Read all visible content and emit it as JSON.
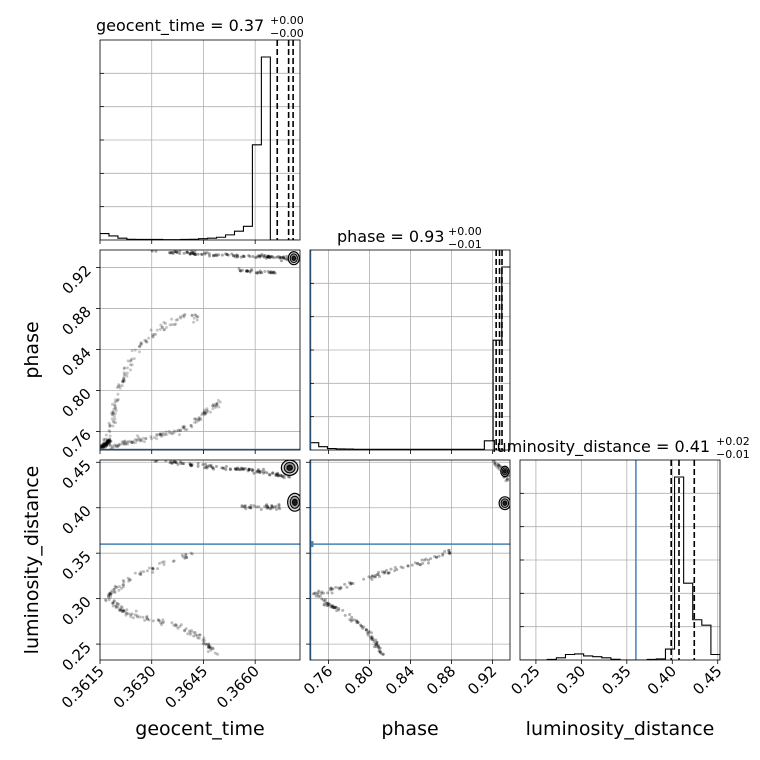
{
  "chart_data": {
    "type": "corner",
    "parameters": [
      "geocent_time",
      "phase",
      "luminosity_distance"
    ],
    "truths": {
      "geocent_time": null,
      "phase": 0.7425,
      "luminosity_distance": 0.36
    },
    "truth_color": "#4682b4",
    "titles": [
      {
        "param": "geocent_time",
        "prefix": "geocent_time = 0.37",
        "sup": "+0.00",
        "sub": "−0.00"
      },
      {
        "param": "phase",
        "prefix": "phase = 0.93",
        "sup": "+0.00",
        "sub": "−0.01"
      },
      {
        "param": "luminosity_distance",
        "prefix": "luminosity_distance = 0.41",
        "sup": "+0.02",
        "sub": "−0.01"
      }
    ],
    "axes": {
      "geocent_time": {
        "label": "geocent_time",
        "range": [
          0.3615,
          0.3673
        ],
        "ticks": [
          0.3615,
          0.363,
          0.3645,
          0.366
        ],
        "tick_labels": [
          "0.3615",
          "0.3630",
          "0.3645",
          "0.3660"
        ]
      },
      "phase": {
        "label": "phase",
        "range": [
          0.742,
          0.937
        ],
        "ticks": [
          0.76,
          0.8,
          0.84,
          0.88,
          0.92
        ],
        "tick_labels": [
          "0.76",
          "0.80",
          "0.84",
          "0.88",
          "0.92"
        ]
      },
      "luminosity_distance": {
        "label": "luminosity_distance",
        "range": [
          0.2325,
          0.4525
        ],
        "ticks": [
          0.25,
          0.3,
          0.35,
          0.4,
          0.45
        ],
        "tick_labels": [
          "0.25",
          "0.30",
          "0.35",
          "0.40",
          "0.45"
        ]
      }
    },
    "histograms": {
      "geocent_time": {
        "edges": [
          0.3615,
          0.36176,
          0.36202,
          0.36228,
          0.36254,
          0.3628,
          0.36306,
          0.36332,
          0.36358,
          0.36384,
          0.3641,
          0.36436,
          0.36462,
          0.36488,
          0.36514,
          0.3654,
          0.36566,
          0.36592,
          0.36618,
          0.36644,
          0.3667,
          0.36696,
          0.36722
        ],
        "counts": [
          0.035,
          0.022,
          0.01,
          0.004,
          0.003,
          0.003,
          0.003,
          0.002,
          0.002,
          0.003,
          0.004,
          0.007,
          0.01,
          0.015,
          0.028,
          0.048,
          0.075,
          0.52,
          1.0,
          0.0,
          0.0,
          0.0
        ],
        "quantile_lines": [
          0.36664,
          0.36697,
          0.3671
        ]
      },
      "phase": {
        "edges": [
          0.742,
          0.7505,
          0.759,
          0.7675,
          0.776,
          0.7845,
          0.793,
          0.8015,
          0.81,
          0.8185,
          0.827,
          0.8355,
          0.844,
          0.8525,
          0.861,
          0.8695,
          0.878,
          0.8865,
          0.895,
          0.9035,
          0.912,
          0.9205,
          0.929,
          0.9375
        ],
        "counts": [
          0.04,
          0.018,
          0.008,
          0.006,
          0.005,
          0.004,
          0.004,
          0.004,
          0.004,
          0.004,
          0.004,
          0.004,
          0.004,
          0.004,
          0.004,
          0.004,
          0.004,
          0.004,
          0.004,
          0.004,
          0.05,
          0.6,
          1.0
        ],
        "quantile_lines": [
          0.9235,
          0.9268,
          0.9292
        ]
      },
      "luminosity_distance": {
        "edges": [
          0.2325,
          0.2425,
          0.2525,
          0.2625,
          0.2725,
          0.2825,
          0.2925,
          0.3025,
          0.3125,
          0.3225,
          0.3325,
          0.3425,
          0.3525,
          0.3625,
          0.3725,
          0.3825,
          0.3925,
          0.4025,
          0.4125,
          0.4225,
          0.4325,
          0.4425,
          0.4525
        ],
        "counts": [
          0.0,
          0.0,
          0.0,
          0.003,
          0.012,
          0.03,
          0.033,
          0.022,
          0.018,
          0.012,
          0.004,
          0.0,
          0.0,
          0.0,
          0.003,
          0.006,
          0.06,
          1.0,
          0.42,
          0.22,
          0.19,
          0.03
        ],
        "quantile_lines": [
          0.3988,
          0.4074,
          0.4242
        ]
      }
    },
    "scatter_tracks": {
      "phase_vs_geocent_time": [
        {
          "pts": [
            [
              0.36175,
              0.744
            ],
            [
              0.3619,
              0.746
            ],
            [
              0.3621,
              0.748
            ],
            [
              0.3624,
              0.75
            ],
            [
              0.36275,
              0.752
            ],
            [
              0.3631,
              0.755
            ],
            [
              0.36345,
              0.758
            ],
            [
              0.3638,
              0.761
            ],
            [
              0.3641,
              0.766
            ],
            [
              0.36435,
              0.772
            ],
            [
              0.36455,
              0.778
            ],
            [
              0.36475,
              0.784
            ],
            [
              0.36495,
              0.788
            ]
          ],
          "jitter": [
            4e-05,
            0.0015
          ],
          "count": 130,
          "alpha": 0.22
        },
        {
          "pts": [
            [
              0.3616,
              0.746
            ],
            [
              0.3617,
              0.755
            ],
            [
              0.3618,
              0.765
            ],
            [
              0.3619,
              0.776
            ],
            [
              0.362,
              0.788
            ],
            [
              0.3621,
              0.802
            ],
            [
              0.36225,
              0.816
            ],
            [
              0.36245,
              0.83
            ],
            [
              0.3627,
              0.844
            ],
            [
              0.36305,
              0.856
            ],
            [
              0.36345,
              0.865
            ],
            [
              0.36395,
              0.871
            ],
            [
              0.3644,
              0.872
            ]
          ],
          "jitter": [
            5e-05,
            0.002
          ],
          "count": 130,
          "alpha": 0.22
        },
        {
          "pts": [
            [
              0.363,
              0.936
            ],
            [
              0.364,
              0.934
            ],
            [
              0.365,
              0.932
            ],
            [
              0.366,
              0.9305
            ],
            [
              0.3665,
              0.93
            ],
            [
              0.367,
              0.929
            ]
          ],
          "jitter": [
            4e-05,
            0.0008
          ],
          "count": 110,
          "alpha": 0.35
        },
        {
          "pts": [
            [
              0.3654,
              0.918
            ],
            [
              0.366,
              0.916
            ],
            [
              0.3666,
              0.915
            ]
          ],
          "jitter": [
            3e-05,
            0.001
          ],
          "count": 35,
          "alpha": 0.3
        },
        {
          "pts": [
            [
              0.36152,
              0.744
            ],
            [
              0.36165,
              0.747
            ],
            [
              0.3618,
              0.752
            ]
          ],
          "jitter": [
            2e-05,
            0.0012
          ],
          "count": 45,
          "alpha": 0.4
        }
      ],
      "luminosity_distance_vs_geocent_time": [
        {
          "pts": [
            [
              0.363,
              0.455
            ],
            [
              0.364,
              0.448
            ],
            [
              0.365,
              0.444
            ],
            [
              0.3658,
              0.442
            ],
            [
              0.3664,
              0.438
            ],
            [
              0.367,
              0.432
            ]
          ],
          "jitter": [
            4e-05,
            0.0012
          ],
          "count": 110,
          "alpha": 0.35
        },
        {
          "pts": [
            [
              0.3656,
              0.402
            ],
            [
              0.3662,
              0.4
            ],
            [
              0.3668,
              0.401
            ]
          ],
          "jitter": [
            3e-05,
            0.0015
          ],
          "count": 35,
          "alpha": 0.3
        },
        {
          "pts": [
            [
              0.3641,
              0.348
            ],
            [
              0.3633,
              0.338
            ],
            [
              0.3625,
              0.325
            ],
            [
              0.362,
              0.312
            ],
            [
              0.36175,
              0.302
            ],
            [
              0.3619,
              0.292
            ],
            [
              0.3623,
              0.284
            ],
            [
              0.363,
              0.277
            ],
            [
              0.3638,
              0.27
            ],
            [
              0.3643,
              0.26
            ],
            [
              0.3646,
              0.25
            ],
            [
              0.3649,
              0.238
            ]
          ],
          "jitter": [
            5e-05,
            0.0018
          ],
          "count": 170,
          "alpha": 0.25
        }
      ],
      "luminosity_distance_vs_phase": [
        {
          "pts": [
            [
              0.88,
              0.353
            ],
            [
              0.86,
              0.343
            ],
            [
              0.83,
              0.334
            ],
            [
              0.8,
              0.323
            ],
            [
              0.77,
              0.312
            ],
            [
              0.748,
              0.305
            ],
            [
              0.76,
              0.293
            ],
            [
              0.78,
              0.282
            ],
            [
              0.795,
              0.268
            ],
            [
              0.805,
              0.253
            ],
            [
              0.812,
              0.24
            ]
          ],
          "jitter": [
            0.0015,
            0.0015
          ],
          "count": 170,
          "alpha": 0.3
        },
        {
          "pts": [
            [
              0.92,
              0.452
            ],
            [
              0.93,
              0.44
            ],
            [
              0.935,
              0.43
            ]
          ],
          "jitter": [
            0.001,
            0.002
          ],
          "count": 40,
          "alpha": 0.3
        }
      ]
    },
    "density_blobs": {
      "phase_vs_geocent_time": [
        [
          0.36712,
          0.929,
          0.0001,
          0.0045
        ]
      ],
      "luminosity_distance_vs_geocent_time": [
        [
          0.367,
          0.444,
          0.00015,
          0.006
        ],
        [
          0.36715,
          0.406,
          0.00013,
          0.007
        ]
      ],
      "luminosity_distance_vs_phase": [
        [
          0.932,
          0.405,
          0.0035,
          0.005
        ],
        [
          0.932,
          0.44,
          0.0025,
          0.004
        ]
      ]
    }
  }
}
